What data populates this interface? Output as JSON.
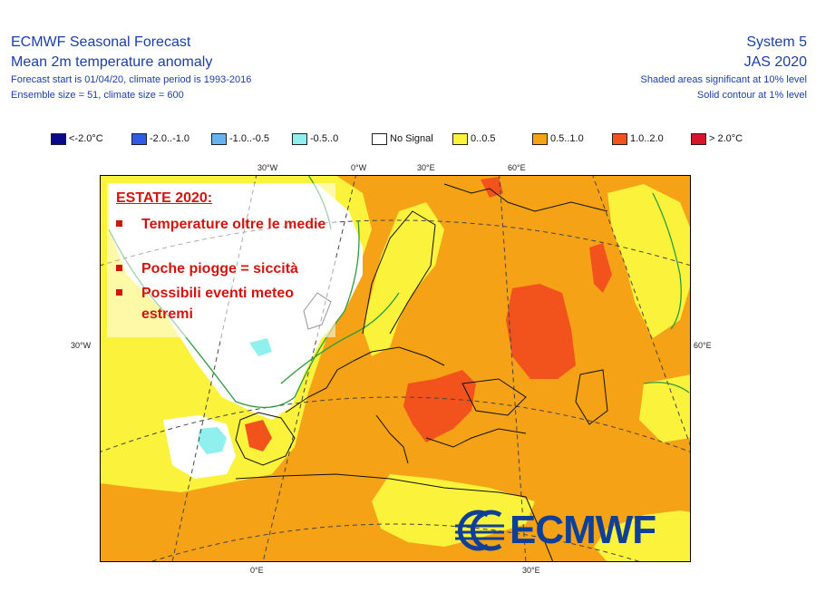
{
  "header": {
    "title": "ECMWF Seasonal Forecast",
    "subtitle": "Mean 2m temperature anomaly",
    "forecast_line": "Forecast start is 01/04/20, climate period is 1993-2016",
    "ensemble_line": "Ensemble size = 51, climate size = 600",
    "system": "System 5",
    "period": "JAS 2020",
    "note_shaded": "Shaded areas significant at 10% level",
    "note_contour": "Solid contour at 1% level"
  },
  "legend": [
    {
      "label": "<-2.0°C",
      "color": "#0a0a8a"
    },
    {
      "label": "-2.0..-1.0",
      "color": "#2f5ce6"
    },
    {
      "label": "-1.0..-0.5",
      "color": "#66b3f2"
    },
    {
      "label": "-0.5..0",
      "color": "#8ff0ee"
    },
    {
      "label": "No Signal",
      "color": "#ffffff"
    },
    {
      "label": "0..0.5",
      "color": "#fbf23c"
    },
    {
      "label": "0.5..1.0",
      "color": "#f5a216"
    },
    {
      "label": "1.0..2.0",
      "color": "#f2521c"
    },
    {
      "label": "> 2.0°C",
      "color": "#d8142b"
    }
  ],
  "longitude_labels": {
    "top": [
      "30°W",
      "0°W",
      "30°E",
      "60°E"
    ],
    "bottom": [
      "0°E",
      "30°E"
    ],
    "left": "30°W",
    "right": "60°E"
  },
  "overlay": {
    "title": "ESTATE 2020:",
    "bullets": [
      "Temperature oltre le medie",
      "Poche piogge = siccità",
      "Possibili eventi meteo estremi"
    ]
  },
  "logo": {
    "text": "ECMWF",
    "color": "#0f3f96"
  },
  "colors": {
    "header_text": "#1b3fa6",
    "overlay_text": "#d4140f",
    "land_outline": "#111111",
    "contour": "#2e9a3d"
  }
}
